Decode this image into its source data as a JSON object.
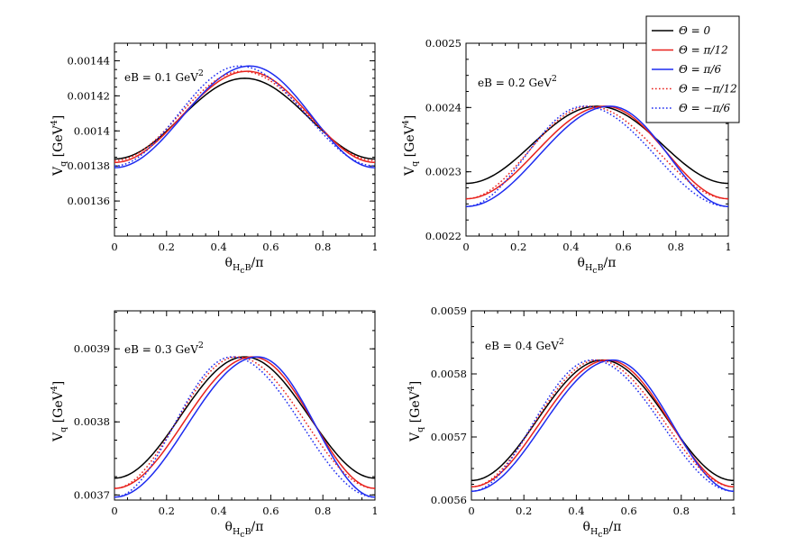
{
  "colors": {
    "black": "#000000",
    "red": "#e8211c",
    "blue": "#1d2bf0"
  },
  "legend": {
    "placement": "top-right",
    "entries": [
      {
        "label": "Θ = 0",
        "color": "#000000",
        "dash": "solid"
      },
      {
        "label": "Θ = π/12",
        "color": "#e8211c",
        "dash": "solid"
      },
      {
        "label": "Θ = π/6",
        "color": "#1d2bf0",
        "dash": "solid"
      },
      {
        "label": "Θ = −π/12",
        "color": "#e8211c",
        "dash": "dotted"
      },
      {
        "label": "Θ = −π/6",
        "color": "#1d2bf0",
        "dash": "dotted"
      }
    ]
  },
  "xlabel": {
    "main": "θ",
    "sub": "H",
    "subsub": "c",
    "sub2": "B",
    "rest": "/π"
  },
  "ylabel": {
    "main": "V",
    "sub": "q",
    "bracket_open": "[GeV",
    "sup": "4",
    "bracket_close": "]"
  },
  "chart_data": [
    {
      "type": "line",
      "annotation": {
        "text": "eB = 0.1 GeV",
        "sup": "2"
      },
      "xlim": [
        0,
        1
      ],
      "ylim": [
        0.00134,
        0.00145
      ],
      "xticks": [
        "0",
        "0.2",
        "0.4",
        "0.6",
        "0.8",
        "1"
      ],
      "yticks": [
        "0.00136",
        "0.00138",
        "0.0014",
        "0.00142",
        "0.00144"
      ],
      "ytick_values": [
        0.00136,
        0.00138,
        0.0014,
        0.00142,
        0.00144
      ],
      "series": [
        {
          "name": "Θ = 0",
          "min": 0.001384,
          "max": 0.00143,
          "xmax": 0.5
        },
        {
          "name": "Θ = π/12",
          "min": 0.001382,
          "max": 0.001434,
          "xmax": 0.51
        },
        {
          "name": "Θ = π/6",
          "min": 0.001379,
          "max": 0.001437,
          "xmax": 0.52
        },
        {
          "name": "Θ = −π/12",
          "min": 0.001383,
          "max": 0.001434,
          "xmax": 0.49
        },
        {
          "name": "Θ = −π/6",
          "min": 0.00138,
          "max": 0.001437,
          "xmax": 0.48
        }
      ]
    },
    {
      "type": "line",
      "annotation": {
        "text": "eB = 0.2 GeV",
        "sup": "2"
      },
      "xlim": [
        0,
        1
      ],
      "ylim": [
        0.0022,
        0.0025
      ],
      "xticks": [
        "0",
        "0.2",
        "0.4",
        "0.6",
        "0.8",
        "1"
      ],
      "yticks": [
        "0.0022",
        "0.0023",
        "0.0024",
        "0.0025"
      ],
      "ytick_values": [
        0.0022,
        0.0023,
        0.0024,
        0.0025
      ],
      "series": [
        {
          "name": "Θ = 0",
          "min": 0.002282,
          "max": 0.002402,
          "xmax": 0.5
        },
        {
          "name": "Θ = π/12",
          "min": 0.002258,
          "max": 0.002402,
          "xmax": 0.53
        },
        {
          "name": "Θ = π/6",
          "min": 0.002246,
          "max": 0.002402,
          "xmax": 0.55
        },
        {
          "name": "Θ = −π/12",
          "min": 0.002258,
          "max": 0.002402,
          "xmax": 0.47
        },
        {
          "name": "Θ = −π/6",
          "min": 0.002246,
          "max": 0.002402,
          "xmax": 0.45
        }
      ]
    },
    {
      "type": "line",
      "annotation": {
        "text": "eB = 0.3 GeV",
        "sup": "2"
      },
      "xlim": [
        0,
        1
      ],
      "ylim": [
        0.003693,
        0.003952
      ],
      "xticks": [
        "0",
        "0.2",
        "0.4",
        "0.6",
        "0.8",
        "1"
      ],
      "yticks": [
        "0.0037",
        "0.0038",
        "0.0039"
      ],
      "ytick_values": [
        0.0037,
        0.0038,
        0.0039
      ],
      "series": [
        {
          "name": "Θ = 0",
          "min": 0.003723,
          "max": 0.003889,
          "xmax": 0.5
        },
        {
          "name": "Θ = π/12",
          "min": 0.003709,
          "max": 0.003889,
          "xmax": 0.53
        },
        {
          "name": "Θ = π/6",
          "min": 0.003697,
          "max": 0.003889,
          "xmax": 0.55
        },
        {
          "name": "Θ = −π/12",
          "min": 0.003709,
          "max": 0.003889,
          "xmax": 0.47
        },
        {
          "name": "Θ = −π/6",
          "min": 0.003697,
          "max": 0.003889,
          "xmax": 0.45
        }
      ]
    },
    {
      "type": "line",
      "annotation": {
        "text": "eB = 0.4 GeV",
        "sup": "2"
      },
      "xlim": [
        0,
        1
      ],
      "ylim": [
        0.0056,
        0.0059
      ],
      "xticks": [
        "0",
        "0.2",
        "0.4",
        "0.6",
        "0.8",
        "1"
      ],
      "yticks": [
        "0.0056",
        "0.0057",
        "0.0058",
        "0.0059"
      ],
      "ytick_values": [
        0.0056,
        0.0057,
        0.0058,
        0.0059
      ],
      "series": [
        {
          "name": "Θ = 0",
          "min": 0.005631,
          "max": 0.005822,
          "xmax": 0.5
        },
        {
          "name": "Θ = π/12",
          "min": 0.005621,
          "max": 0.005822,
          "xmax": 0.52
        },
        {
          "name": "Θ = π/6",
          "min": 0.005614,
          "max": 0.005822,
          "xmax": 0.54
        },
        {
          "name": "Θ = −π/12",
          "min": 0.005621,
          "max": 0.005822,
          "xmax": 0.48
        },
        {
          "name": "Θ = −π/6",
          "min": 0.005614,
          "max": 0.005822,
          "xmax": 0.46
        }
      ]
    }
  ]
}
